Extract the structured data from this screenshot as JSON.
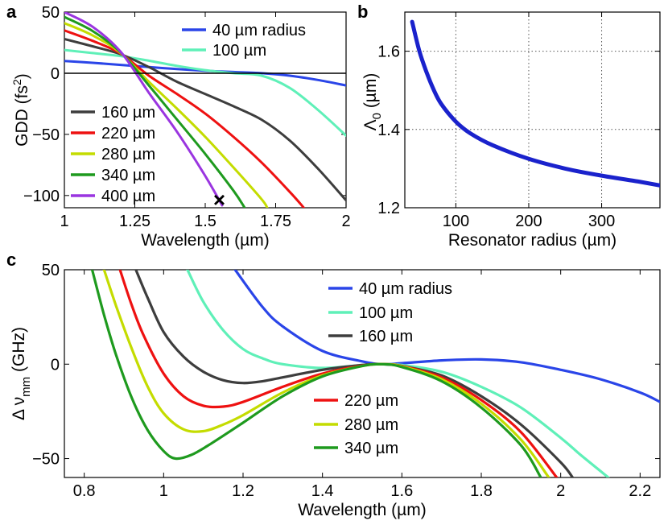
{
  "panels": {
    "a": {
      "label": "a",
      "xlabel": "Wavelength (µm)",
      "ylabel_main": "GDD (fs",
      "ylabel_sup": "2",
      "ylabel_end": ")",
      "xlim": [
        1,
        2
      ],
      "ylim": [
        -110,
        50
      ],
      "xticks": [
        1,
        1.25,
        1.5,
        1.75,
        2
      ],
      "xtick_labels": [
        "1",
        "1.25",
        "1.5",
        "1.75",
        "2"
      ],
      "yticks": [
        50,
        0,
        -50,
        -100
      ],
      "ytick_labels": [
        "50",
        "0",
        "−50",
        "−100"
      ],
      "marker_label": "×",
      "marker": {
        "x": 1.55,
        "y": -104
      },
      "series": [
        {
          "name": "40 µm radius",
          "color": "#2a45e8",
          "x": [
            1,
            1.1,
            1.2,
            1.3,
            1.4,
            1.5,
            1.6,
            1.7,
            1.8,
            1.9,
            2
          ],
          "y": [
            10,
            8.5,
            6.8,
            5,
            3.4,
            2,
            1,
            0,
            -2,
            -5.5,
            -10
          ]
        },
        {
          "name": "100 µm",
          "color": "#5ff0b8",
          "x": [
            1,
            1.1,
            1.2,
            1.3,
            1.4,
            1.5,
            1.6,
            1.7,
            1.8,
            1.9,
            2
          ],
          "y": [
            19,
            16.5,
            14,
            10.2,
            6,
            2.5,
            0,
            -2,
            -12,
            -30,
            -51
          ]
        },
        {
          "name": "160 µm",
          "color": "#3d3d3d",
          "x": [
            1,
            1.1,
            1.2,
            1.3,
            1.4,
            1.5,
            1.6,
            1.7,
            1.8,
            1.9,
            2
          ],
          "y": [
            28,
            22,
            15.5,
            5,
            -7,
            -17,
            -27,
            -38,
            -55,
            -78,
            -104
          ]
        },
        {
          "name": "220 µm",
          "color": "#ee1111",
          "x": [
            1,
            1.1,
            1.2,
            1.3,
            1.4,
            1.5,
            1.6,
            1.7,
            1.8,
            1.85
          ],
          "y": [
            35,
            26.5,
            16,
            -2,
            -17,
            -33,
            -52,
            -73,
            -97,
            -110
          ]
        },
        {
          "name": "280 µm",
          "color": "#c4dc00",
          "x": [
            1,
            1.1,
            1.2,
            1.3,
            1.4,
            1.5,
            1.6,
            1.7,
            1.72
          ],
          "y": [
            41,
            31,
            16.5,
            -7,
            -29,
            -52,
            -77,
            -103,
            -110
          ]
        },
        {
          "name": "340 µm",
          "color": "#1e9a1e",
          "x": [
            1,
            1.1,
            1.2,
            1.3,
            1.4,
            1.5,
            1.6,
            1.64
          ],
          "y": [
            46,
            34.5,
            17,
            -10,
            -38,
            -66,
            -96,
            -110
          ]
        },
        {
          "name": "400 µm",
          "color": "#9a35e0",
          "x": [
            1,
            1.1,
            1.2,
            1.3,
            1.4,
            1.5,
            1.56
          ],
          "y": [
            50,
            38,
            17.5,
            -16,
            -48,
            -84,
            -108
          ]
        }
      ]
    },
    "b": {
      "label": "b",
      "xlabel": "Resonator radius (µm)",
      "ylabel_main": "Λ",
      "ylabel_sub": "0",
      "ylabel_end": " (µm)",
      "xlim": [
        30,
        380
      ],
      "ylim": [
        1.2,
        1.7
      ],
      "xticks": [
        100,
        200,
        300
      ],
      "xtick_labels": [
        "100",
        "200",
        "300"
      ],
      "yticks": [
        1.2,
        1.4,
        1.6
      ],
      "ytick_labels": [
        "1.2",
        "1.4",
        "1.6"
      ],
      "series": [
        {
          "name": "Λ0",
          "color": "#1a22cc",
          "x": [
            40,
            50,
            60,
            70,
            80,
            100,
            120,
            150,
            200,
            250,
            300,
            350,
            380
          ],
          "y": [
            1.675,
            1.6,
            1.545,
            1.5,
            1.465,
            1.42,
            1.39,
            1.36,
            1.325,
            1.3,
            1.282,
            1.267,
            1.257
          ]
        }
      ]
    },
    "c": {
      "label": "c",
      "xlabel": "Wavelength (µm)",
      "ylabel_pre": "Δ ν",
      "ylabel_sub": "mm",
      "ylabel_end": " (GHz)",
      "xlim": [
        0.75,
        2.25
      ],
      "ylim": [
        -60,
        50
      ],
      "xticks": [
        0.8,
        1,
        1.2,
        1.4,
        1.6,
        1.8,
        2,
        2.2
      ],
      "xtick_labels": [
        "0.8",
        "1",
        "1.2",
        "1.4",
        "1.6",
        "1.8",
        "2",
        "2.2"
      ],
      "yticks": [
        50,
        0,
        -50
      ],
      "ytick_labels": [
        "50",
        "0",
        "−50"
      ],
      "series": [
        {
          "name": "40 µm radius",
          "color": "#2a45e8",
          "x": [
            1.18,
            1.25,
            1.3,
            1.4,
            1.5,
            1.55,
            1.6,
            1.7,
            1.8,
            1.9,
            2,
            2.1,
            2.2,
            2.25
          ],
          "y": [
            50,
            30,
            20,
            7,
            1.5,
            0,
            0.5,
            2,
            2.5,
            1,
            -3,
            -8,
            -15,
            -20
          ]
        },
        {
          "name": "100 µm",
          "color": "#5ff0b8",
          "x": [
            1.06,
            1.1,
            1.15,
            1.2,
            1.25,
            1.3,
            1.4,
            1.5,
            1.55,
            1.6,
            1.7,
            1.8,
            1.9,
            2,
            2.05,
            2.12
          ],
          "y": [
            50,
            33,
            18,
            8,
            3,
            0,
            -2,
            -0.5,
            0,
            -0.5,
            -4,
            -12,
            -23,
            -39,
            -48,
            -60
          ]
        },
        {
          "name": "160 µm",
          "color": "#3d3d3d",
          "x": [
            0.93,
            0.96,
            1,
            1.05,
            1.1,
            1.15,
            1.2,
            1.25,
            1.3,
            1.4,
            1.5,
            1.55,
            1.6,
            1.7,
            1.8,
            1.9,
            2,
            2.03
          ],
          "y": [
            50,
            35,
            17,
            4,
            -4,
            -8.5,
            -10,
            -9,
            -7,
            -3,
            -0.5,
            0,
            -1,
            -6,
            -17,
            -32,
            -52,
            -60
          ]
        },
        {
          "name": "220 µm",
          "color": "#ee1111",
          "x": [
            0.89,
            0.92,
            0.95,
            1,
            1.05,
            1.1,
            1.15,
            1.2,
            1.3,
            1.4,
            1.5,
            1.55,
            1.6,
            1.7,
            1.8,
            1.9,
            1.99
          ],
          "y": [
            50,
            31,
            15,
            -5,
            -17,
            -22,
            -22.5,
            -20,
            -12,
            -5,
            -0.8,
            0,
            -1,
            -7,
            -19,
            -36,
            -60
          ]
        },
        {
          "name": "280 µm",
          "color": "#c4dc00",
          "x": [
            0.85,
            0.88,
            0.92,
            0.96,
            1,
            1.05,
            1.1,
            1.15,
            1.2,
            1.3,
            1.4,
            1.5,
            1.55,
            1.6,
            1.7,
            1.8,
            1.9,
            1.97
          ],
          "y": [
            50,
            31,
            8,
            -12,
            -26,
            -34.5,
            -35.5,
            -32,
            -27,
            -15,
            -6,
            -1,
            0,
            -1.2,
            -8,
            -21,
            -40,
            -60
          ]
        },
        {
          "name": "340 µm",
          "color": "#1e9a1e",
          "x": [
            0.82,
            0.85,
            0.88,
            0.92,
            0.96,
            1,
            1.03,
            1.07,
            1.12,
            1.2,
            1.3,
            1.4,
            1.5,
            1.55,
            1.6,
            1.7,
            1.8,
            1.9,
            1.95
          ],
          "y": [
            50,
            26,
            5,
            -18,
            -35,
            -46,
            -50,
            -48,
            -42,
            -31,
            -17,
            -6.5,
            -1,
            0,
            -1.5,
            -9,
            -23,
            -43,
            -60
          ]
        }
      ]
    }
  }
}
